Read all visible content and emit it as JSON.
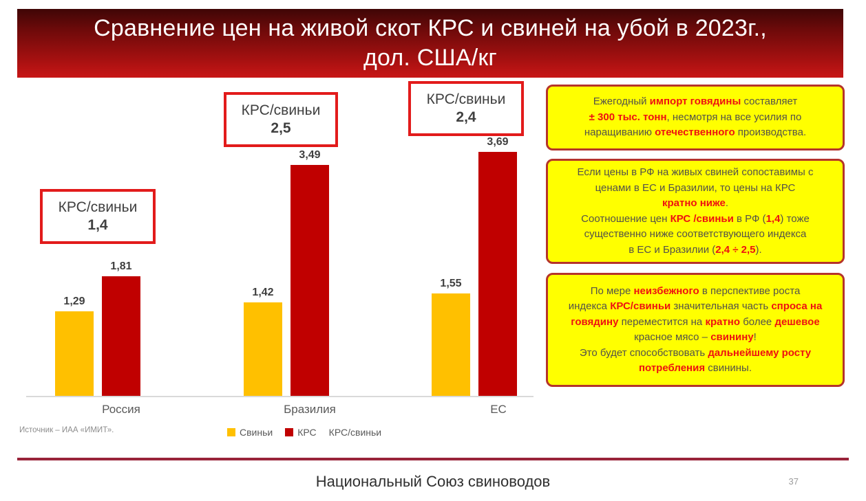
{
  "slide": {
    "title_line1": "Сравнение цен на живой скот КРС и свиней на убой в 2023г.,",
    "title_line2": "дол. США/кг",
    "source": "Источник – ИАА «ИМИТ».",
    "footer": "Национальный Союз свиноводов",
    "page_number": "37"
  },
  "chart_data": {
    "type": "bar",
    "title": "Сравнение цен на живой скот КРС и свиней на убой в 2023г., дол. США/кг",
    "xlabel": "",
    "ylabel": "дол. США/кг",
    "ylim": [
      0,
      4
    ],
    "grid": false,
    "legend_position": "bottom",
    "categories": [
      "Россия",
      "Бразилия",
      "ЕС"
    ],
    "series": [
      {
        "name": "Свиньи",
        "color": "#FFC000",
        "values": [
          1.29,
          1.42,
          1.55
        ],
        "labels": [
          "1,29",
          "1,42",
          "1,55"
        ]
      },
      {
        "name": "КРС",
        "color": "#C00000",
        "values": [
          1.81,
          3.49,
          3.69
        ],
        "labels": [
          "1,81",
          "3,49",
          "3,69"
        ]
      }
    ],
    "ratio_series": {
      "name": "КРС/свиньи",
      "values": [
        1.4,
        2.5,
        2.4
      ],
      "labels": [
        "1,4",
        "2,5",
        "2,4"
      ]
    }
  },
  "ratio_boxes": [
    {
      "label": "КРС/свиньи",
      "value": "1,4"
    },
    {
      "label": "КРС/свиньи",
      "value": "2,5"
    },
    {
      "label": "КРС/свиньи",
      "value": "2,4"
    }
  ],
  "callouts": [
    {
      "segments": [
        {
          "t": "Ежегодный "
        },
        {
          "t": "импорт говядины",
          "red": true
        },
        {
          "t": " составляет"
        },
        {
          "br": true
        },
        {
          "t": "± 300 тыс. тонн",
          "red": true
        },
        {
          "t": ", несмотря на все усилия по"
        },
        {
          "br": true
        },
        {
          "t": "наращиванию "
        },
        {
          "t": "отечественного",
          "red": true
        },
        {
          "t": " производства."
        }
      ]
    },
    {
      "segments": [
        {
          "t": "Если цены в РФ на живых свиней сопоставимы с"
        },
        {
          "br": true
        },
        {
          "t": "ценами  в ЕС и Бразилии, то цены на КРС"
        },
        {
          "br": true
        },
        {
          "t": "кратно ниже",
          "red": true
        },
        {
          "t": "."
        },
        {
          "br": true
        },
        {
          "t": "Соотношение цен "
        },
        {
          "t": "КРС /свиньи",
          "red": true
        },
        {
          "t": " в РФ ("
        },
        {
          "t": "1,4",
          "red": true
        },
        {
          "t": ") тоже"
        },
        {
          "br": true
        },
        {
          "t": "существенно ниже  соответствующего индекса"
        },
        {
          "br": true
        },
        {
          "t": "в ЕС и Бразилии ("
        },
        {
          "t": "2,4 ÷ 2,5",
          "red": true
        },
        {
          "t": ")."
        }
      ]
    },
    {
      "segments": [
        {
          "t": "По мере "
        },
        {
          "t": "неизбежного",
          "red": true
        },
        {
          "t": " в перспективе роста"
        },
        {
          "br": true
        },
        {
          "t": "индекса "
        },
        {
          "t": "КРС/свиньи",
          "red": true
        },
        {
          "t": " значительная часть "
        },
        {
          "t": "спроса на",
          "red": true
        },
        {
          "br": true
        },
        {
          "t": "говядину",
          "red": true
        },
        {
          "t": " переместится на "
        },
        {
          "t": "кратно",
          "red": true
        },
        {
          "t": " более "
        },
        {
          "t": "дешевое",
          "red": true
        },
        {
          "br": true
        },
        {
          "t": "красное мясо – "
        },
        {
          "t": "свинину",
          "red": true
        },
        {
          "t": "!"
        },
        {
          "br": true
        },
        {
          "t": "Это будет способствовать "
        },
        {
          "t": "дальнейшему росту",
          "red": true
        },
        {
          "br": true
        },
        {
          "t": "потребления",
          "red": true
        },
        {
          "t": " свинины."
        }
      ]
    }
  ],
  "colors": {
    "pigs_bar": "#FFC000",
    "cattle_bar": "#C00000",
    "banner_red": "#c81616",
    "ratio_box_border": "#e21b1b",
    "callout_fill": "#ffff00",
    "callout_border": "#b5342a",
    "highlight_red": "#ee1111",
    "footer_line": "#99243a"
  }
}
